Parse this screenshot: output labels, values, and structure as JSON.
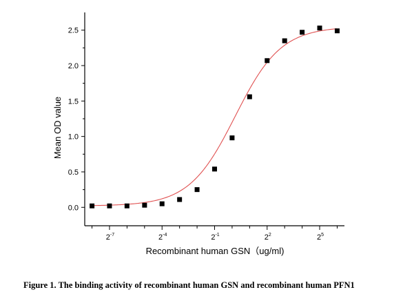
{
  "figure_caption": "Figure 1. The binding activity of recombinant human GSN and recombinant human PFN1",
  "chart_data": {
    "type": "scatter",
    "title": "",
    "xlabel": "Recombinant human  GSN（ug/ml)",
    "ylabel": "Mean OD value",
    "x_scale": "log2",
    "x_ticks": [
      {
        "base": "2",
        "exp": "-7",
        "value": 0.0078125
      },
      {
        "base": "2",
        "exp": "-4",
        "value": 0.0625
      },
      {
        "base": "2",
        "exp": "-1",
        "value": 0.5
      },
      {
        "base": "2",
        "exp": "2",
        "value": 4
      },
      {
        "base": "2",
        "exp": "5",
        "value": 32
      }
    ],
    "x_lim": [
      0.00293,
      85.33
    ],
    "y_ticks": [
      "0.0",
      "0.5",
      "1.0",
      "1.5",
      "2.0",
      "2.5"
    ],
    "ylim": [
      -0.26,
      2.75
    ],
    "series": [
      {
        "x": [
          0.00391,
          0.00781,
          0.0156,
          0.0313,
          0.0625,
          0.125,
          0.25,
          0.5,
          1,
          2,
          4,
          8,
          16,
          32,
          64
        ],
        "y": [
          0.02,
          0.02,
          0.02,
          0.03,
          0.05,
          0.11,
          0.25,
          0.54,
          0.98,
          1.56,
          2.07,
          2.35,
          2.47,
          2.53,
          2.49
        ],
        "marker": "square",
        "color": "#000000"
      }
    ],
    "fit_curve": {
      "model": "4-parameter logistic",
      "bottom": 0.02,
      "top": 2.55,
      "ec50": 1.13,
      "hill": 1.1,
      "color": "#e05050"
    },
    "minor_ticks": true,
    "grid": false,
    "legend": "none"
  }
}
